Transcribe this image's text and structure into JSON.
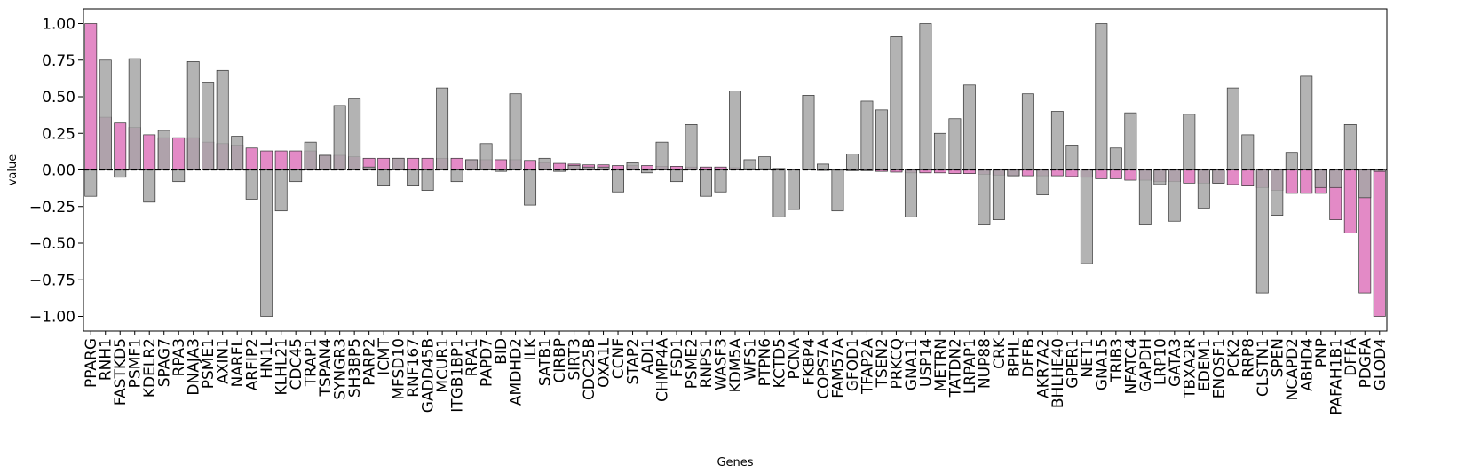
{
  "chart_data": {
    "type": "bar",
    "xlabel": "Genes",
    "ylabel": "value",
    "ylim": [
      -1.1,
      1.1
    ],
    "yticks": [
      1.0,
      0.75,
      0.5,
      0.25,
      0.0,
      -0.25,
      -0.5,
      -0.75,
      -1.0
    ],
    "ytick_labels": [
      "1.00",
      "0.75",
      "0.50",
      "0.25",
      "0.00",
      "−0.25",
      "−0.50",
      "−0.75",
      "−1.00"
    ],
    "grid": false,
    "reference_line": 0,
    "colors": {
      "pink": "#e38ac6",
      "grey": "#a6a6a6",
      "edge": "#333333"
    },
    "categories": [
      "PPARG",
      "RNH1",
      "FASTKD5",
      "PSMF1",
      "KDELR2",
      "SPAG7",
      "RPA3",
      "DNAJA3",
      "PSME1",
      "AXIN1",
      "NARFL",
      "ARFIP2",
      "HN1L",
      "KLHL21",
      "CDC45",
      "TRAP1",
      "TSPAN4",
      "SYNGR3",
      "SH3BP5",
      "PARP2",
      "ICMT",
      "MFSD10",
      "RNF167",
      "GADD45B",
      "MCUR1",
      "ITGB1BP1",
      "RPA1",
      "PAPD7",
      "BID",
      "AMDHD2",
      "ILK",
      "SATB1",
      "CIRBP",
      "SIRT3",
      "CDC25B",
      "OXA1L",
      "CCNF",
      "STAP2",
      "ADI1",
      "CHMP4A",
      "FSD1",
      "PSME2",
      "RNPS1",
      "WASF3",
      "KDM5A",
      "WFS1",
      "PTPN6",
      "KCTD5",
      "PCNA",
      "FKBP4",
      "COPS7A",
      "FAM57A",
      "GFOD1",
      "TFAP2A",
      "TSEN2",
      "PRKCQ",
      "GNA11",
      "USP14",
      "METRN",
      "TATDN2",
      "LRPAP1",
      "NUP88",
      "CRK",
      "BPHL",
      "DFFB",
      "AKR7A2",
      "BHLHE40",
      "GPER1",
      "NET1",
      "GNA15",
      "TRIB3",
      "NFATC4",
      "GAPDH",
      "LRP10",
      "GATA3",
      "TBXA2R",
      "EDEM1",
      "ENOSF1",
      "PCK2",
      "RRP8",
      "CLSTN1",
      "SPEN",
      "NCAPD2",
      "ABHD4",
      "PNP",
      "PAFAH1B1",
      "DFFA",
      "PDGFA",
      "GLOD4"
    ],
    "series": [
      {
        "color": "#e38ac6",
        "values": [
          1.0,
          0.36,
          0.32,
          0.29,
          0.24,
          0.22,
          0.22,
          0.22,
          0.19,
          0.18,
          0.17,
          0.15,
          0.13,
          0.13,
          0.13,
          0.13,
          0.1,
          0.1,
          0.09,
          0.08,
          0.08,
          0.08,
          0.08,
          0.08,
          0.08,
          0.08,
          0.07,
          0.07,
          0.07,
          0.07,
          0.065,
          0.05,
          0.045,
          0.04,
          0.035,
          0.035,
          0.03,
          0.03,
          0.03,
          0.025,
          0.025,
          0.02,
          0.02,
          0.02,
          0.015,
          0.01,
          0.01,
          0.01,
          0.005,
          0.005,
          0.0,
          0.0,
          -0.005,
          -0.005,
          -0.01,
          -0.015,
          -0.02,
          -0.02,
          -0.02,
          -0.025,
          -0.025,
          -0.03,
          -0.035,
          -0.04,
          -0.04,
          -0.04,
          -0.04,
          -0.045,
          -0.05,
          -0.06,
          -0.06,
          -0.07,
          -0.07,
          -0.08,
          -0.08,
          -0.09,
          -0.09,
          -0.09,
          -0.1,
          -0.11,
          -0.12,
          -0.14,
          -0.16,
          -0.16,
          -0.16,
          -0.34,
          -0.43,
          -0.84,
          -1.0
        ]
      },
      {
        "color": "#a6a6a6",
        "values": [
          -0.18,
          0.75,
          -0.05,
          0.76,
          -0.22,
          0.27,
          -0.08,
          0.74,
          0.6,
          0.68,
          0.23,
          -0.2,
          -1.0,
          -0.28,
          -0.08,
          0.19,
          0.1,
          0.44,
          0.49,
          0.02,
          -0.11,
          0.08,
          -0.11,
          -0.14,
          0.56,
          -0.08,
          0.07,
          0.18,
          -0.01,
          0.52,
          -0.24,
          0.08,
          -0.01,
          0.03,
          0.02,
          0.02,
          -0.15,
          0.05,
          -0.02,
          0.19,
          -0.08,
          0.31,
          -0.18,
          -0.15,
          0.54,
          0.07,
          0.09,
          -0.32,
          -0.27,
          0.51,
          0.04,
          -0.28,
          0.11,
          0.47,
          0.41,
          0.91,
          -0.32,
          1.0,
          0.25,
          0.35,
          0.58,
          -0.37,
          -0.34,
          -0.04,
          0.52,
          -0.17,
          0.4,
          0.17,
          -0.64,
          1.0,
          0.15,
          0.39,
          -0.37,
          -0.1,
          -0.35,
          0.38,
          -0.26,
          -0.09,
          0.56,
          0.24,
          -0.84,
          -0.31,
          0.12,
          0.64,
          -0.12,
          -0.12,
          0.31,
          -0.19,
          -0.01
        ]
      }
    ]
  }
}
